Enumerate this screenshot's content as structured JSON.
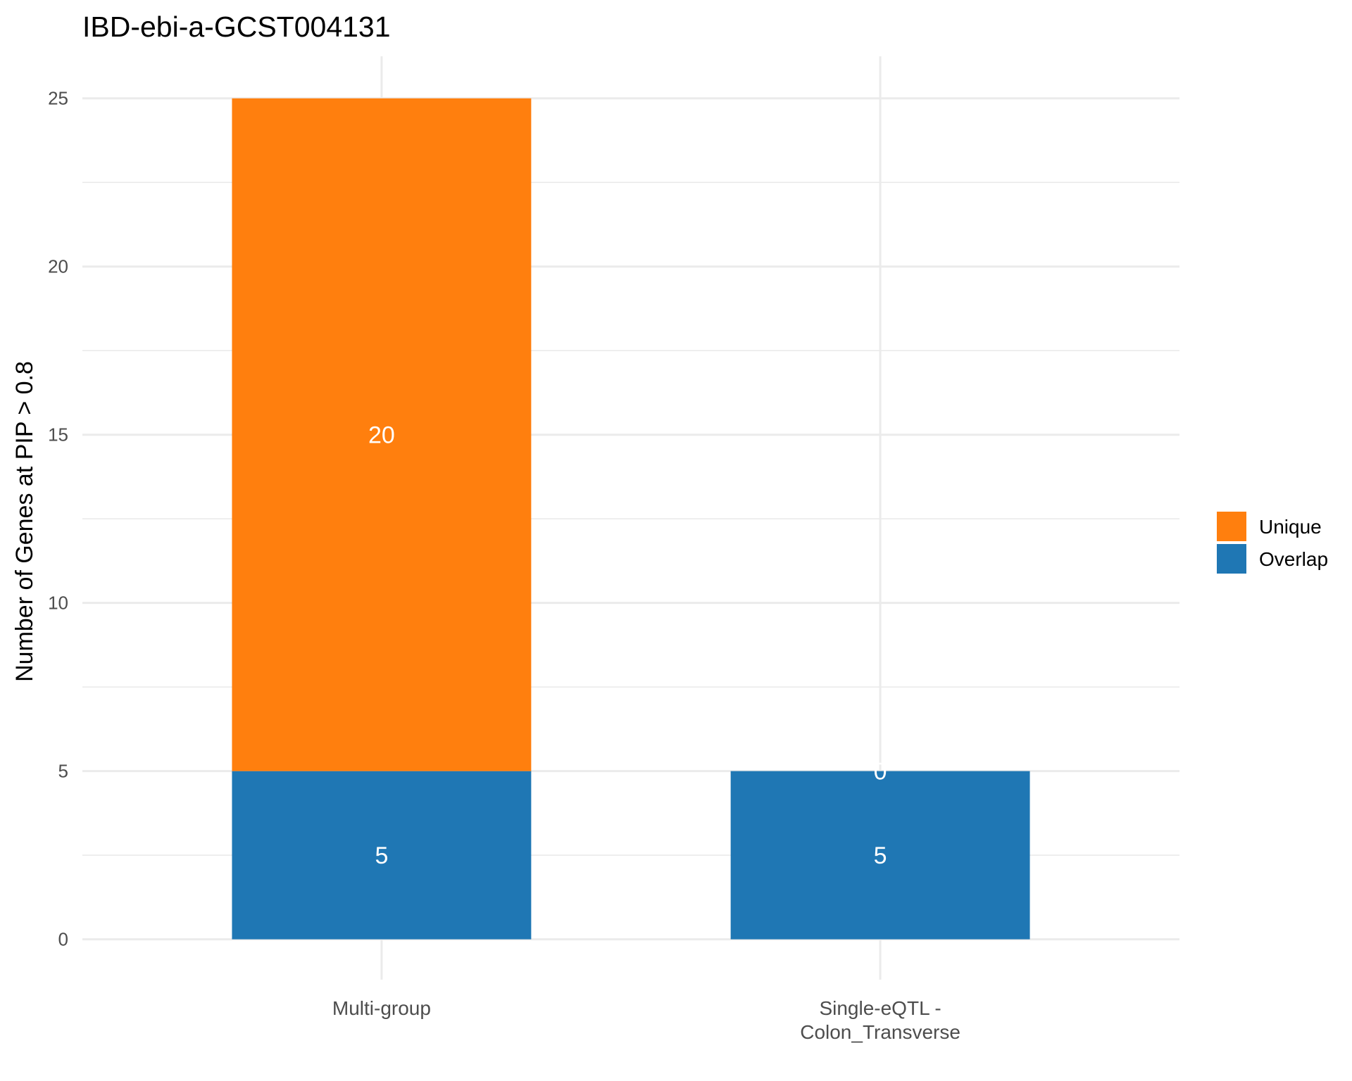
{
  "chart_data": {
    "type": "bar",
    "stacked": true,
    "title": "IBD-ebi-a-GCST004131",
    "xlabel": "",
    "ylabel": "Number of Genes at PIP > 0.8",
    "categories": [
      "Multi-group",
      "Single-eQTL -\nColon_Transverse"
    ],
    "series": [
      {
        "name": "Overlap",
        "values": [
          5,
          5
        ],
        "color": "#1f77b4"
      },
      {
        "name": "Unique",
        "values": [
          20,
          0
        ],
        "color": "#ff7f0e"
      }
    ],
    "ylim": [
      -1.2,
      26.25
    ],
    "yticks": [
      0,
      5,
      10,
      15,
      20,
      25
    ],
    "grid": true,
    "legend": {
      "placement": "right",
      "entries": [
        {
          "label": "Unique",
          "color": "#ff7f0e"
        },
        {
          "label": "Overlap",
          "color": "#1f77b4"
        }
      ]
    }
  }
}
